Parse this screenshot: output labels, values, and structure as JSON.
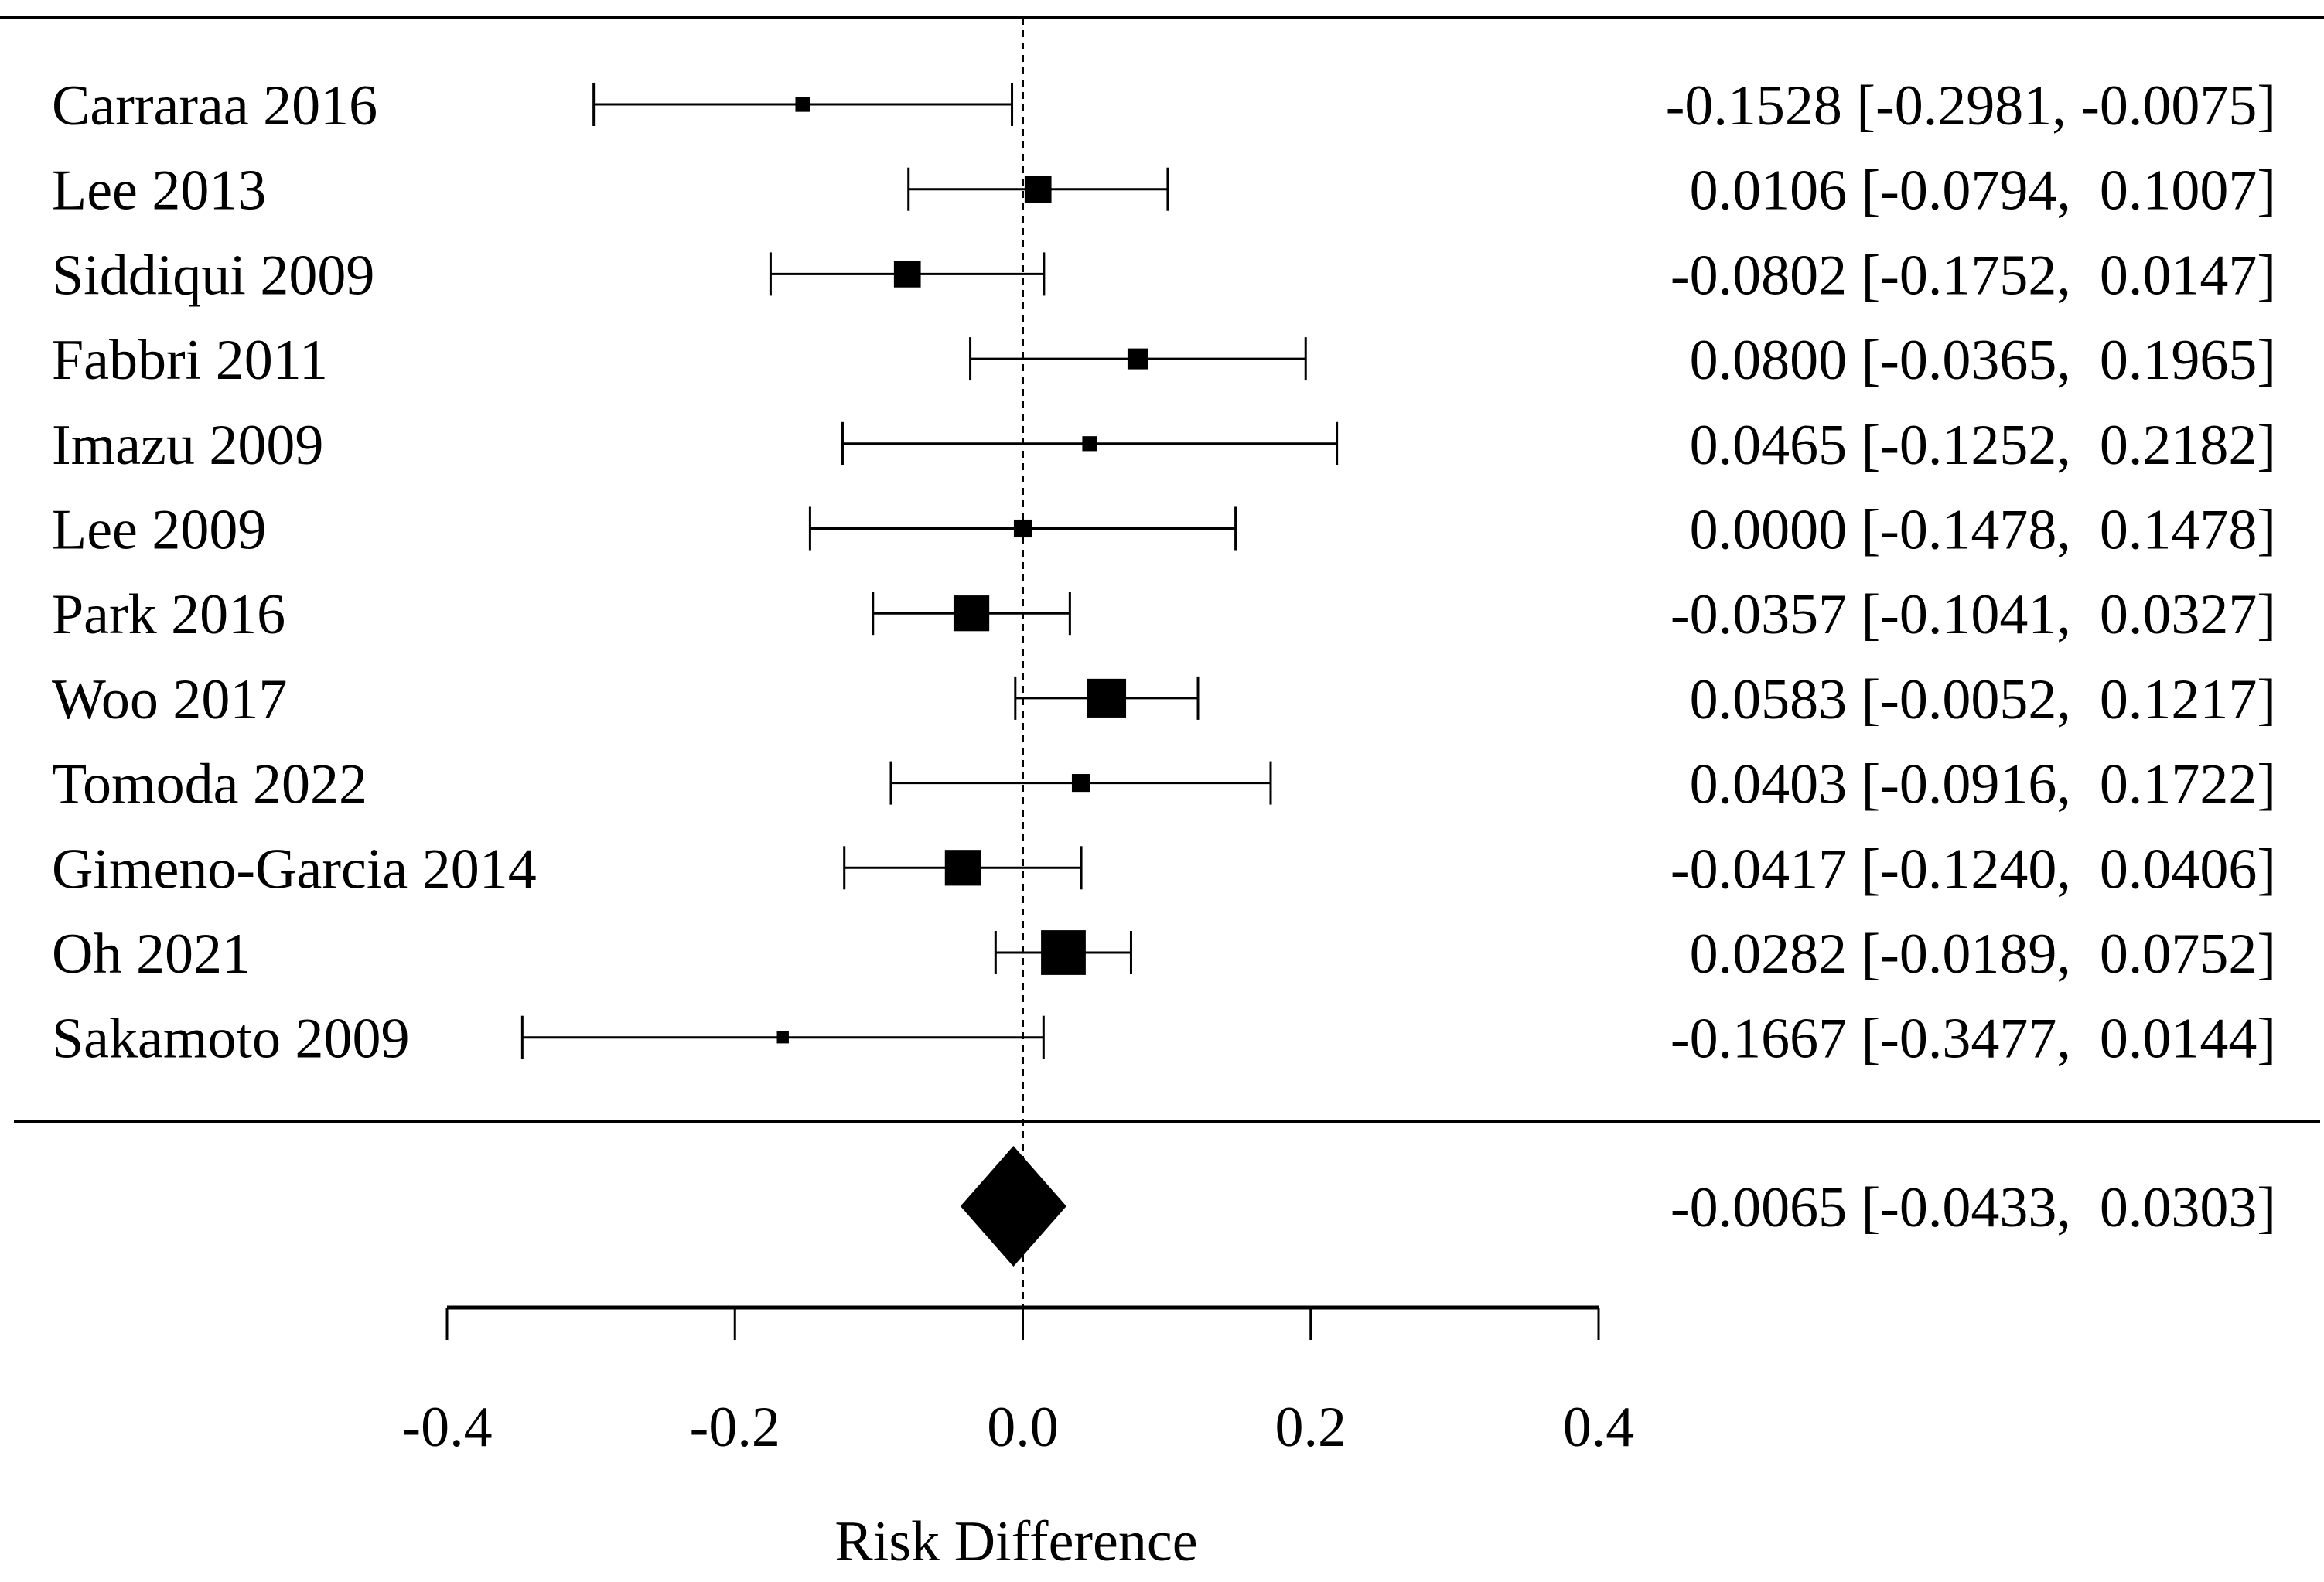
{
  "chart_data": {
    "type": "forest",
    "xlabel": "Risk Difference",
    "xlim": [
      -0.4,
      0.4
    ],
    "xticks": [
      -0.4,
      -0.2,
      0.0,
      0.2,
      0.4
    ],
    "xtick_labels": [
      "-0.4",
      "-0.2",
      "0.0",
      "0.2",
      "0.4"
    ],
    "reference_line": 0,
    "studies": [
      {
        "label": "Carraraa 2016",
        "estimate": -0.1528,
        "lower": -0.2981,
        "upper": -0.0075,
        "text": "-0.1528 [-0.2981, -0.0075]",
        "relative_weight": 10
      },
      {
        "label": "Lee 2013",
        "estimate": 0.0106,
        "lower": -0.0794,
        "upper": 0.1007,
        "text": "0.0106 [-0.0794,  0.1007]",
        "relative_weight": 18
      },
      {
        "label": "Siddiqui 2009",
        "estimate": -0.0802,
        "lower": -0.1752,
        "upper": 0.0147,
        "text": "-0.0802 [-0.1752,  0.0147]",
        "relative_weight": 18
      },
      {
        "label": "Fabbri 2011",
        "estimate": 0.08,
        "lower": -0.0365,
        "upper": 0.1965,
        "text": "0.0800 [-0.0365,  0.1965]",
        "relative_weight": 14
      },
      {
        "label": "Imazu 2009",
        "estimate": 0.0465,
        "lower": -0.1252,
        "upper": 0.2182,
        "text": "0.0465 [-0.1252,  0.2182]",
        "relative_weight": 10
      },
      {
        "label": "Lee 2009",
        "estimate": 0.0,
        "lower": -0.1478,
        "upper": 0.1478,
        "text": "0.0000 [-0.1478,  0.1478]",
        "relative_weight": 12
      },
      {
        "label": "Park 2016",
        "estimate": -0.0357,
        "lower": -0.1041,
        "upper": 0.0327,
        "text": "-0.0357 [-0.1041,  0.0327]",
        "relative_weight": 24
      },
      {
        "label": "Woo 2017",
        "estimate": 0.0583,
        "lower": -0.0052,
        "upper": 0.1217,
        "text": "0.0583 [-0.0052,  0.1217]",
        "relative_weight": 26
      },
      {
        "label": "Tomoda 2022",
        "estimate": 0.0403,
        "lower": -0.0916,
        "upper": 0.1722,
        "text": "0.0403 [-0.0916,  0.1722]",
        "relative_weight": 12
      },
      {
        "label": "Gimeno-Garcia 2014",
        "estimate": -0.0417,
        "lower": -0.124,
        "upper": 0.0406,
        "text": "-0.0417 [-0.1240,  0.0406]",
        "relative_weight": 24
      },
      {
        "label": "Oh 2021",
        "estimate": 0.0282,
        "lower": -0.0189,
        "upper": 0.0752,
        "text": "0.0282 [-0.0189,  0.0752]",
        "relative_weight": 30
      },
      {
        "label": "Sakamoto 2009",
        "estimate": -0.1667,
        "lower": -0.3477,
        "upper": 0.0144,
        "text": "-0.1667 [-0.3477,  0.0144]",
        "relative_weight": 8
      }
    ],
    "summary": {
      "estimate": -0.0065,
      "lower": -0.0433,
      "upper": 0.0303,
      "text": "-0.0065 [-0.0433,  0.0303]"
    }
  }
}
